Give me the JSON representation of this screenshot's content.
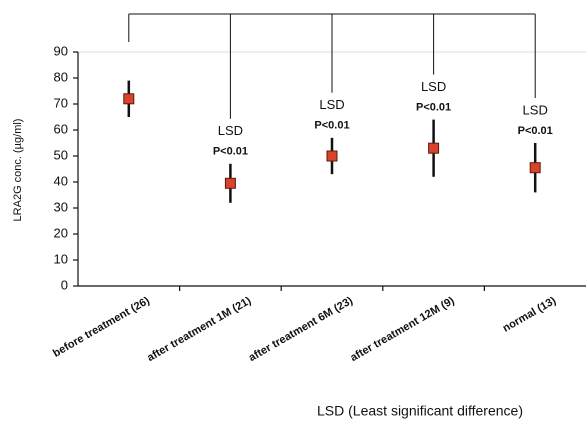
{
  "chart_data": {
    "type": "errorbar",
    "y_label": "LRA2G conc. (µg/ml)",
    "x_label": "LSD (Least significant difference)",
    "categories": [
      "before treatment (26)",
      "after treatment 1M (21)",
      "after treatment 6M (23)",
      "after treatment 12M (9)",
      "normal (13)"
    ],
    "values": [
      72,
      39.5,
      50,
      53,
      45.5
    ],
    "errors": [
      7,
      7.5,
      7,
      11,
      9.5
    ],
    "color": "#d9432c",
    "ylim": [
      0,
      90
    ],
    "yticks": [
      0,
      10,
      20,
      30,
      40,
      50,
      60,
      70,
      80,
      90
    ],
    "grid": false,
    "annotations": [
      {
        "category": "after treatment 1M (21)",
        "text": "LSD",
        "subtext": "P<0.01"
      },
      {
        "category": "after treatment 6M (23)",
        "text": "LSD",
        "subtext": "P<0.01"
      },
      {
        "category": "after treatment 12M (9)",
        "text": "LSD",
        "subtext": "P<0.01"
      },
      {
        "category": "normal (13)",
        "text": "LSD",
        "subtext": "P<0.01"
      }
    ]
  }
}
